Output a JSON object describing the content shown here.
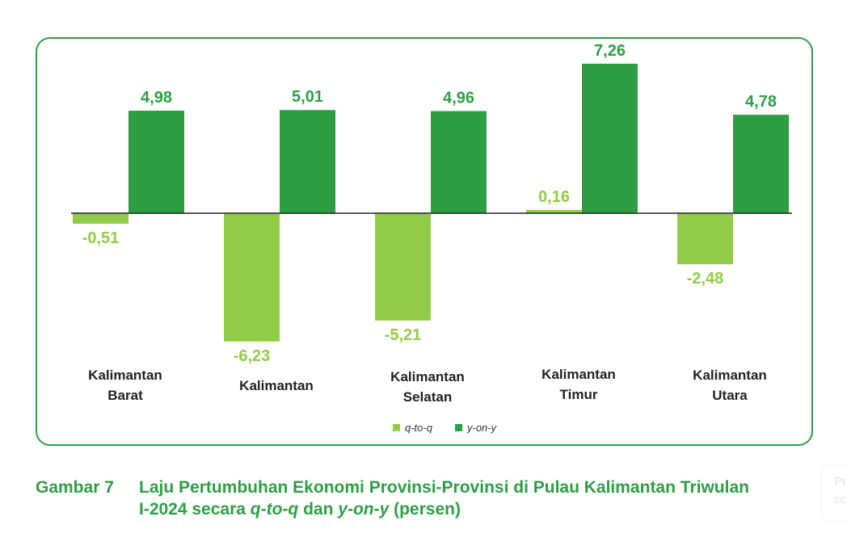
{
  "chart_data": {
    "type": "bar",
    "categories": [
      [
        "Kalimantan",
        "Barat"
      ],
      [
        "Kalimantan"
      ],
      [
        "Kalimantan",
        "Selatan"
      ],
      [
        "Kalimantan",
        "Timur"
      ],
      [
        "Kalimantan",
        "Utara"
      ]
    ],
    "series": [
      {
        "name": "q-to-q",
        "color": "#92cc47",
        "values": [
          -0.51,
          -6.23,
          -5.21,
          0.16,
          -2.48
        ],
        "labels": [
          "-0,51",
          "-6,23",
          "-5,21",
          "0,16",
          "-2,48"
        ]
      },
      {
        "name": "y-on-y",
        "color": "#2e9e44",
        "values": [
          4.98,
          5.01,
          4.96,
          7.26,
          4.78
        ],
        "labels": [
          "4,98",
          "5,01",
          "4,96",
          "7,26",
          "4,78"
        ]
      }
    ],
    "legend_position": "bottom-center",
    "grid": false,
    "label_colors": {
      "q-to-q": "#92cc47",
      "y-on-y": "#2e9e44"
    }
  },
  "caption": {
    "number": "Gambar 7",
    "line1": "Laju Pertumbuhan Ekonomi Provinsi-Provinsi di Pulau Kalimantan Triwulan",
    "line2_prefix": "I-2024 secara ",
    "term1": "q-to-q",
    "middle": " dan ",
    "term2": "y-on-y",
    "suffix": " (persen)"
  },
  "side_ghost": {
    "line1": "Pr",
    "line2": "sc"
  }
}
